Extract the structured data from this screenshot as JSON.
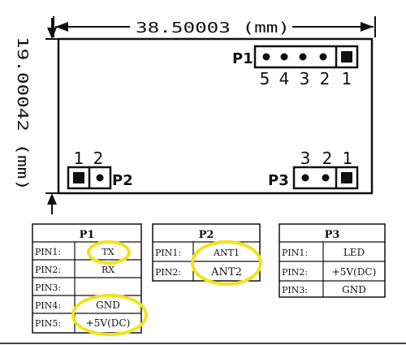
{
  "dimensions": {
    "width_label": "38.50003 (mm)",
    "height_label": "19.00042 (mm)"
  },
  "board_headers": {
    "p1": {
      "name": "P1",
      "pin_numbers": [
        "5",
        "4",
        "3",
        "2",
        "1"
      ]
    },
    "p2": {
      "name": "P2",
      "pin_numbers": [
        "1",
        "2"
      ]
    },
    "p3": {
      "name": "P3",
      "pin_numbers": [
        "3",
        "2",
        "1"
      ]
    }
  },
  "tables": {
    "p1": {
      "title": "P1",
      "rows": [
        {
          "pin": "PIN1:",
          "value": "TX"
        },
        {
          "pin": "PIN2:",
          "value": "RX"
        },
        {
          "pin": "PIN3:",
          "value": ""
        },
        {
          "pin": "PIN4:",
          "value": "GND"
        },
        {
          "pin": "PIN5:",
          "value": "+5V(DC)"
        }
      ]
    },
    "p2": {
      "title": "P2",
      "rows": [
        {
          "pin": "PIN1:",
          "value": "ANT1"
        },
        {
          "pin": "PIN2:",
          "value": "ANT2"
        }
      ]
    },
    "p3": {
      "title": "P3",
      "rows": [
        {
          "pin": "PIN1:",
          "value": "LED"
        },
        {
          "pin": "PIN2:",
          "value": "+5V(DC)"
        },
        {
          "pin": "PIN3:",
          "value": "GND"
        }
      ]
    }
  },
  "colors": {
    "ink": "#111111",
    "highlight": "#f2e21b",
    "background": "#ffffff"
  }
}
